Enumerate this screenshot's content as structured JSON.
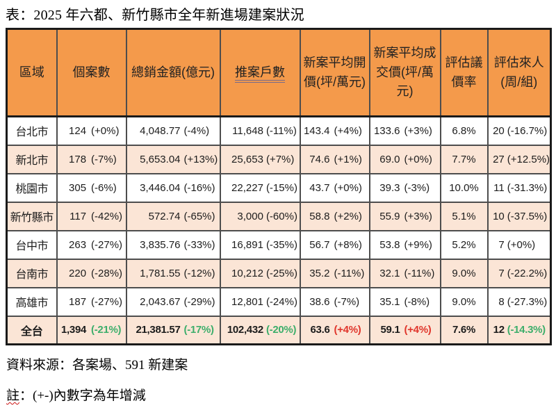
{
  "title": "表：2025 年六都、新竹縣市全年新進場建案狀況",
  "colors": {
    "header_bg": "#F49A4B",
    "stripe_bg": "#FBE5D6",
    "row_bg": "#FFFFFF",
    "green": "#3DAE6B",
    "red": "#E0362C",
    "border": "#4D4D4D",
    "outer_border": "#1A1A1A"
  },
  "table": {
    "columns": [
      {
        "label": "區域",
        "underline": false
      },
      {
        "label": "個案數",
        "underline": false
      },
      {
        "label": "總銷金額(億元)",
        "underline": false
      },
      {
        "label": "推案戶數",
        "underline": true
      },
      {
        "label": "新案平均開價(坪/萬元)",
        "underline": false
      },
      {
        "label": "新案平均成交價(坪/萬元)",
        "underline": false
      },
      {
        "label": "評估議價率",
        "underline": false
      },
      {
        "label": "評估來人(周/組)",
        "underline": false
      }
    ],
    "rows": [
      {
        "region": "台北市",
        "bold": false,
        "cells": [
          {
            "value": "124",
            "change": "(+0%)"
          },
          {
            "value": "4,048.77",
            "change": "(-4%)"
          },
          {
            "value": "11,648",
            "change": "(-11%)"
          },
          {
            "value": "143.4",
            "change": "(+4%)"
          },
          {
            "value": "133.6",
            "change": "(+3%)"
          },
          {
            "value": "6.8%"
          },
          {
            "value": "20",
            "change": "(-16.7%)"
          }
        ]
      },
      {
        "region": "新北市",
        "bold": false,
        "cells": [
          {
            "value": "178",
            "change": "(-7%)"
          },
          {
            "value": "5,653.04",
            "change": "(+13%)"
          },
          {
            "value": "25,653",
            "change": "(+7%)"
          },
          {
            "value": "74.6",
            "change": "(+1%)"
          },
          {
            "value": "69.0",
            "change": "(+0%)"
          },
          {
            "value": "7.7%"
          },
          {
            "value": "27",
            "change": "(+12.5%)"
          }
        ]
      },
      {
        "region": "桃園市",
        "bold": false,
        "cells": [
          {
            "value": "305",
            "change": "(-6%)"
          },
          {
            "value": "3,446.04",
            "change": "(-16%)"
          },
          {
            "value": "22,227",
            "change": "(-15%)"
          },
          {
            "value": "43.7",
            "change": "(+0%)"
          },
          {
            "value": "39.3",
            "change": "(-3%)"
          },
          {
            "value": "10.0%"
          },
          {
            "value": "11",
            "change": "(-31.3%)"
          }
        ]
      },
      {
        "region": "新竹縣市",
        "bold": false,
        "cells": [
          {
            "value": "117",
            "change": "(-42%)"
          },
          {
            "value": "572.74",
            "change": "(-65%)"
          },
          {
            "value": "3,000",
            "change": "(-60%)"
          },
          {
            "value": "58.8",
            "change": "(+2%)"
          },
          {
            "value": "55.9",
            "change": "(+3%)"
          },
          {
            "value": "5.1%"
          },
          {
            "value": "10",
            "change": "(-37.5%)"
          }
        ]
      },
      {
        "region": "台中市",
        "bold": false,
        "cells": [
          {
            "value": "263",
            "change": "(-27%)"
          },
          {
            "value": "3,835.76",
            "change": "(-33%)"
          },
          {
            "value": "16,891",
            "change": "(-35%)"
          },
          {
            "value": "56.7",
            "change": "(+8%)"
          },
          {
            "value": "53.8",
            "change": "(+9%)"
          },
          {
            "value": "5.2%"
          },
          {
            "value": "7",
            "change": "(+0%)"
          }
        ]
      },
      {
        "region": "台南市",
        "bold": false,
        "cells": [
          {
            "value": "220",
            "change": "(-28%)"
          },
          {
            "value": "1,781.55",
            "change": "(-12%)"
          },
          {
            "value": "10,212",
            "change": "(-25%)"
          },
          {
            "value": "35.2",
            "change": "(-11%)"
          },
          {
            "value": "32.1",
            "change": "(-11%)"
          },
          {
            "value": "9.0%"
          },
          {
            "value": "7",
            "change": "(-22.2%)"
          }
        ]
      },
      {
        "region": "高雄市",
        "bold": false,
        "cells": [
          {
            "value": "187",
            "change": "(-27%)"
          },
          {
            "value": "2,043.67",
            "change": "(-29%)"
          },
          {
            "value": "12,801",
            "change": "(-24%)"
          },
          {
            "value": "38.6",
            "change": "(-7%)"
          },
          {
            "value": "35.1",
            "change": "(-8%)"
          },
          {
            "value": "9.0%"
          },
          {
            "value": "8",
            "change": "(-27.3%)"
          }
        ]
      },
      {
        "region": "全台",
        "bold": true,
        "cells": [
          {
            "value": "1,394",
            "change": "(-21%)",
            "color": "green"
          },
          {
            "value": "21,381.57",
            "change": "(-17%)",
            "color": "green"
          },
          {
            "value": "102,432",
            "change": "(-20%)",
            "color": "green"
          },
          {
            "value": "63.6",
            "change": "(+4%)",
            "color": "red"
          },
          {
            "value": "59.1",
            "change": "(+4%)",
            "color": "red"
          },
          {
            "value": "7.6%"
          },
          {
            "value": "12",
            "change": "(-14.3%)",
            "color": "green"
          }
        ]
      }
    ]
  },
  "footer": {
    "source": "資料來源：各案場、591 新建案",
    "note_head": "註",
    "note_tail": "：(+-)內數字為年增減"
  }
}
